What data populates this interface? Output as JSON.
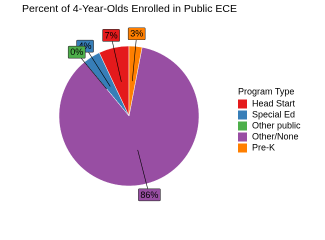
{
  "chart_data": {
    "type": "pie",
    "title": "Percent of 4-Year-Olds Enrolled in Public ECE",
    "legend_title": "Program Type",
    "legend_position": "right",
    "categories": [
      "Head Start",
      "Special Ed",
      "Other public",
      "Other/None",
      "Pre-K"
    ],
    "values": [
      7,
      4,
      0,
      86,
      3
    ],
    "value_labels": [
      "7%",
      "4%",
      "0%",
      "86%",
      "3%"
    ],
    "colors": [
      "#e41a1c",
      "#377eb8",
      "#4daf4a",
      "#984ea3",
      "#ff7f00"
    ]
  }
}
